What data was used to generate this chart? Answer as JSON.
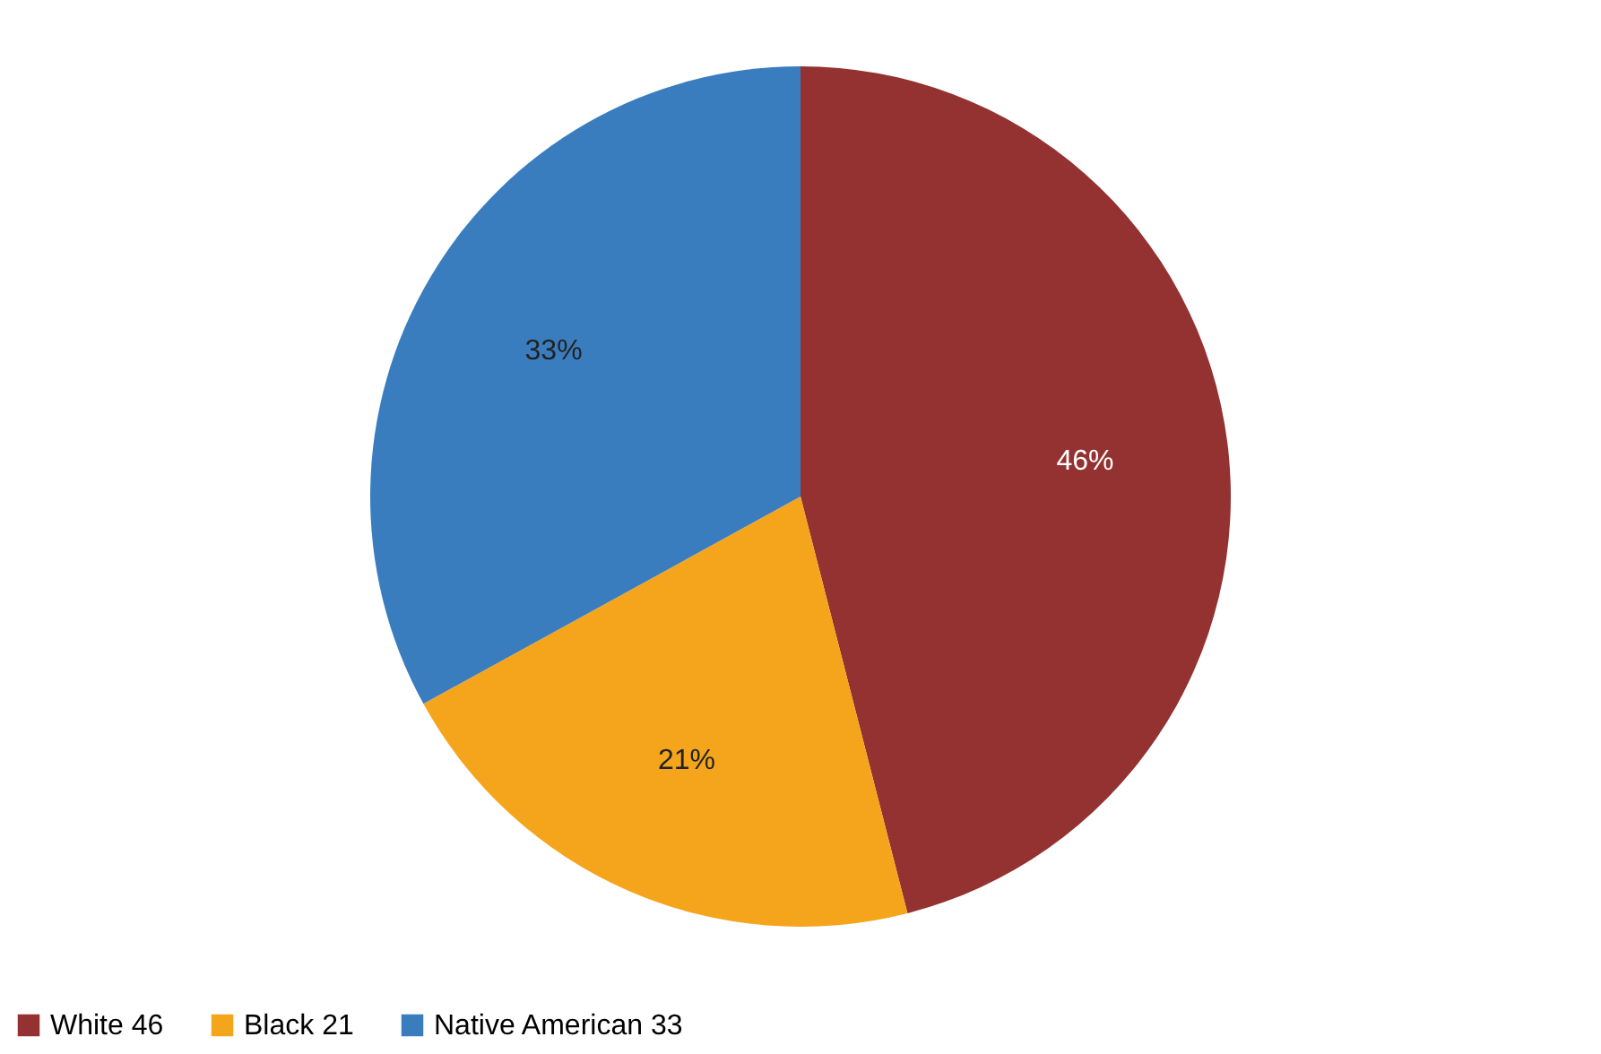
{
  "chart_data": {
    "type": "pie",
    "categories": [
      "White 46",
      "Black 21",
      "Native American 33"
    ],
    "values": [
      46,
      21,
      33
    ],
    "colors": [
      "#943232",
      "#f5a51c",
      "#3a7dbf"
    ],
    "value_labels": [
      "46%",
      "21%",
      "33%"
    ],
    "legend": "bottom"
  }
}
